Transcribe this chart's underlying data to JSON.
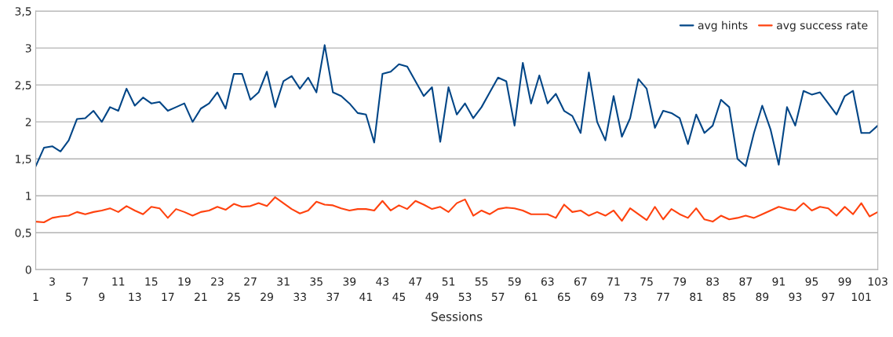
{
  "chart_data": {
    "type": "line",
    "xlabel": "Sessions",
    "categories": [
      "1",
      null,
      "3",
      null,
      "5",
      null,
      "7",
      null,
      "9",
      null,
      "11",
      null,
      "13",
      null,
      "15",
      null,
      "17",
      null,
      "19",
      null,
      "21",
      null,
      "23",
      null,
      "25",
      null,
      "27",
      null,
      "29",
      null,
      "31",
      null,
      "33",
      null,
      "35",
      null,
      "37",
      null,
      "39",
      null,
      "41",
      null,
      "43",
      null,
      "45",
      null,
      "47",
      null,
      "49",
      null,
      "51",
      null,
      "53",
      null,
      "55",
      null,
      "57",
      null,
      "59",
      null,
      "61",
      null,
      "63",
      null,
      "65",
      null,
      "67",
      null,
      "69",
      null,
      "71",
      null,
      "73",
      null,
      "75",
      null,
      "77",
      null,
      "79",
      null,
      "81",
      null,
      "83",
      null,
      "85",
      null,
      "87",
      null,
      "89",
      null,
      "91",
      null,
      "93",
      null,
      "95",
      null,
      "97",
      null,
      "99",
      null,
      "101",
      null,
      "103"
    ],
    "series": [
      {
        "name": "avg hints",
        "color": "#004586",
        "values": [
          1.4,
          1.65,
          1.67,
          1.6,
          1.75,
          2.04,
          2.05,
          2.15,
          2.0,
          2.2,
          2.15,
          2.45,
          2.22,
          2.33,
          2.25,
          2.27,
          2.15,
          2.2,
          2.25,
          2.0,
          2.18,
          2.25,
          2.4,
          2.18,
          2.65,
          2.65,
          2.3,
          2.4,
          2.68,
          2.2,
          2.55,
          2.62,
          2.45,
          2.6,
          2.4,
          3.04,
          2.4,
          2.35,
          2.25,
          2.12,
          2.1,
          1.72,
          2.65,
          2.68,
          2.78,
          2.75,
          2.55,
          2.35,
          2.47,
          1.73,
          2.47,
          2.1,
          2.25,
          2.05,
          2.2,
          2.4,
          2.6,
          2.55,
          1.95,
          2.8,
          2.25,
          2.63,
          2.25,
          2.38,
          2.15,
          2.08,
          1.85,
          2.67,
          2.0,
          1.75,
          2.35,
          1.8,
          2.05,
          2.58,
          2.45,
          1.92,
          2.15,
          2.12,
          2.05,
          1.7,
          2.1,
          1.85,
          1.95,
          2.3,
          2.2,
          1.5,
          1.4,
          1.85,
          2.22,
          1.9,
          1.42,
          2.2,
          1.95,
          2.42,
          2.37,
          2.4,
          2.25,
          2.1,
          2.35,
          2.42,
          1.85,
          1.85,
          1.95
        ]
      },
      {
        "name": "avg success rate",
        "color": "#ff420e",
        "values": [
          0.65,
          0.64,
          0.7,
          0.72,
          0.73,
          0.78,
          0.75,
          0.78,
          0.8,
          0.83,
          0.78,
          0.86,
          0.8,
          0.75,
          0.85,
          0.83,
          0.7,
          0.82,
          0.78,
          0.73,
          0.78,
          0.8,
          0.85,
          0.81,
          0.89,
          0.85,
          0.86,
          0.9,
          0.86,
          0.98,
          0.9,
          0.82,
          0.76,
          0.8,
          0.92,
          0.88,
          0.87,
          0.83,
          0.8,
          0.82,
          0.82,
          0.8,
          0.93,
          0.8,
          0.87,
          0.82,
          0.93,
          0.88,
          0.82,
          0.85,
          0.78,
          0.9,
          0.95,
          0.73,
          0.8,
          0.75,
          0.82,
          0.84,
          0.83,
          0.8,
          0.75,
          0.75,
          0.75,
          0.7,
          0.88,
          0.78,
          0.8,
          0.73,
          0.78,
          0.73,
          0.8,
          0.66,
          0.83,
          0.75,
          0.67,
          0.85,
          0.68,
          0.82,
          0.75,
          0.7,
          0.83,
          0.68,
          0.65,
          0.73,
          0.68,
          0.7,
          0.73,
          0.7,
          0.75,
          0.8,
          0.85,
          0.82,
          0.8,
          0.9,
          0.8,
          0.85,
          0.83,
          0.73,
          0.85,
          0.75,
          0.9,
          0.72,
          0.78
        ]
      }
    ],
    "ylim": [
      0,
      3.5
    ],
    "yticks": [
      0,
      {
        "value": 0.5,
        "label": "0,5"
      },
      1,
      {
        "value": 1.5,
        "label": "1,5"
      },
      2,
      {
        "value": 2.5,
        "label": "2,5"
      },
      3,
      {
        "value": 3.5,
        "label": "3,5"
      }
    ],
    "grid": "y",
    "legend": "top right",
    "line_style": "solid",
    "marker": "none"
  }
}
